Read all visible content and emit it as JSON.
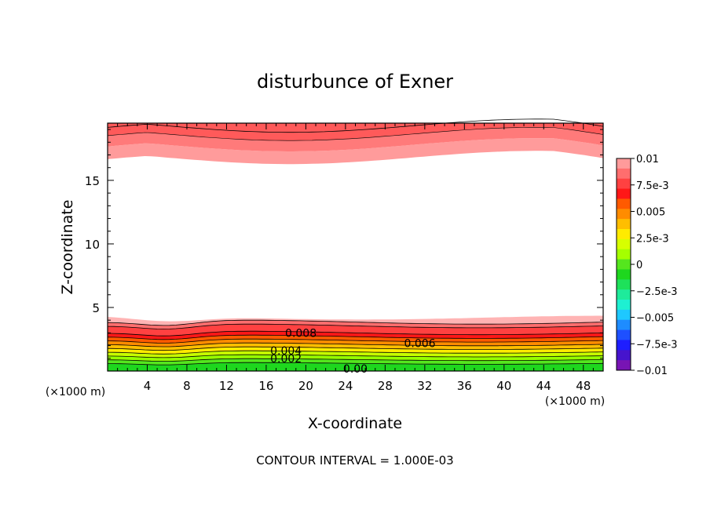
{
  "chart_data": {
    "type": "contour",
    "title": "disturbunce of Exner",
    "xlabel": "X-coordinate",
    "ylabel": "Z-coordinate",
    "x_unit": "(×1000 m)",
    "z_unit": "(×1000 m)",
    "xlim": [
      0,
      50
    ],
    "ylim": [
      0,
      19.5
    ],
    "xticks": [
      4,
      8,
      12,
      16,
      20,
      24,
      28,
      32,
      36,
      40,
      44,
      48
    ],
    "yticks": [
      5,
      10,
      15
    ],
    "footer": "CONTOUR INTERVAL = 1.000E-03",
    "contour_interval": 0.001,
    "colorbar": {
      "min": -0.01,
      "max": 0.01,
      "labels": [
        "0.01",
        "7.5e-3",
        "0.005",
        "2.5e-3",
        "0",
        "−2.5e-3",
        "−0.005",
        "−7.5e-3",
        "−0.01"
      ],
      "colors": [
        "#ff9b9b",
        "#ff6e6e",
        "#ff4141",
        "#ff1717",
        "#ff5a00",
        "#ff8c00",
        "#ffbe00",
        "#ffeb00",
        "#d7ff00",
        "#a5ff00",
        "#55e61e",
        "#1ed71e",
        "#1ee15a",
        "#1eeb9b",
        "#1ef0d2",
        "#1ec8ff",
        "#1e8cff",
        "#1e50ff",
        "#1e1eff",
        "#4614cd",
        "#7814b4"
      ]
    },
    "contour_labels": [
      {
        "text": "0.008",
        "x": 19.5,
        "z": 3.0
      },
      {
        "text": "0.006",
        "x": 31.5,
        "z": 2.2
      },
      {
        "text": "0.004",
        "x": 18.0,
        "z": 1.6
      },
      {
        "text": "0.002",
        "x": 18.0,
        "z": 1.0
      },
      {
        "text": "0.00",
        "x": 25.0,
        "z": 0.2
      }
    ],
    "bottom_layer_colors": [
      "#ffb4b4",
      "#ff6e6e",
      "#ff4141",
      "#ff1717",
      "#ff5a00",
      "#ff8c00",
      "#ffbe00",
      "#ffeb00",
      "#c8ff00",
      "#96ff00",
      "#55e61e",
      "#1ed71e"
    ],
    "top_layer_colors": [
      "#ff9b9b",
      "#ff7a7a",
      "#ff5a5a"
    ]
  }
}
